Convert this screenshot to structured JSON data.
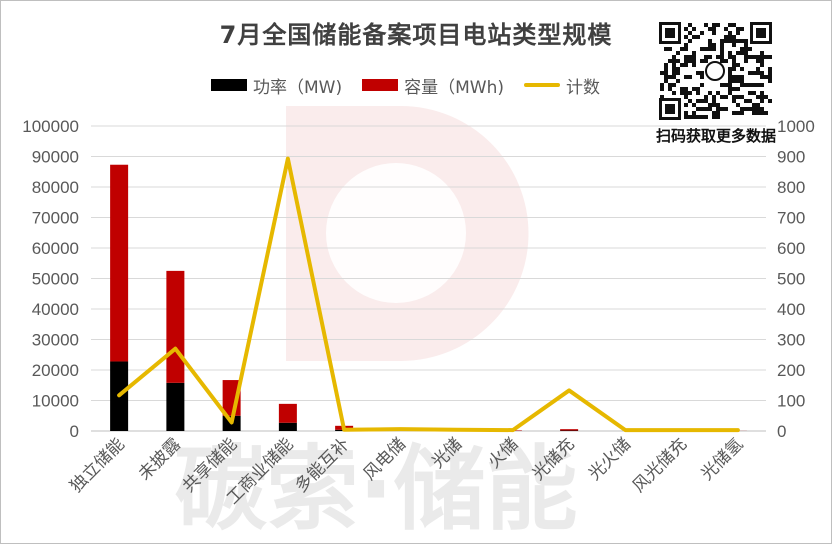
{
  "title": "7月全国储能备案项目电站类型规模",
  "watermark": "碳索·储能",
  "qr_caption": "扫码获取更多数据",
  "colors": {
    "power": "#000000",
    "capacity": "#c00000",
    "count": "#e6b800",
    "grid": "#d9d9d9",
    "axis_text": "#595959",
    "watermark": "#d9d9d9"
  },
  "legend": [
    {
      "label": "功率（MW)",
      "kind": "bar",
      "color": "#000000"
    },
    {
      "label": "容量（MWh)",
      "kind": "bar",
      "color": "#c00000"
    },
    {
      "label": "计数",
      "kind": "line",
      "color": "#e6b800"
    }
  ],
  "chart_data": {
    "type": "bar",
    "stacked": true,
    "categories": [
      "独立储能",
      "未披露",
      "共享储能",
      "工商业储能",
      "多能互补",
      "风电储",
      "光储",
      "火储",
      "光储充",
      "光火储",
      "风光储充",
      "光储氢"
    ],
    "series": [
      {
        "name": "功率（MW)",
        "type": "bar",
        "axis": "left",
        "values": [
          22800,
          15800,
          5000,
          2700,
          400,
          40,
          200,
          50,
          150,
          0,
          0,
          10
        ]
      },
      {
        "name": "容量（MWh)",
        "type": "bar",
        "axis": "left",
        "values": [
          64500,
          36700,
          11700,
          6200,
          1300,
          100,
          600,
          150,
          450,
          0,
          0,
          30
        ]
      },
      {
        "name": "计数",
        "type": "line",
        "axis": "right",
        "values": [
          117,
          270,
          28,
          893,
          4,
          6,
          4,
          3,
          133,
          3,
          3,
          3
        ]
      }
    ],
    "ylim_left": [
      0,
      100000
    ],
    "yticks_left": [
      "0",
      "10000",
      "20000",
      "30000",
      "40000",
      "50000",
      "60000",
      "70000",
      "80000",
      "90000",
      "100000"
    ],
    "ylim_right": [
      0,
      1000
    ],
    "yticks_right": [
      "0",
      "100",
      "200",
      "300",
      "400",
      "500",
      "600",
      "700",
      "800",
      "900",
      "1000"
    ],
    "grid": true,
    "legend_position": "top"
  }
}
